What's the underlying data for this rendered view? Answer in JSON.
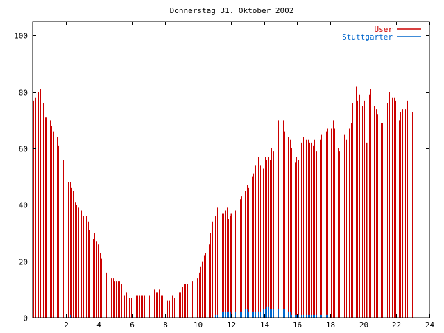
{
  "chart_data": {
    "type": "bar",
    "title": "Donnerstag 31. Oktober 2002",
    "xlim": [
      0,
      24
    ],
    "ylim": [
      0,
      105
    ],
    "xticks": [
      2,
      4,
      6,
      8,
      10,
      12,
      14,
      16,
      18,
      20,
      22,
      24
    ],
    "yticks": [
      0,
      20,
      40,
      60,
      80,
      100
    ],
    "legend_position": "top-right",
    "grid": false,
    "bin_minutes": 6,
    "series": [
      {
        "name": "User",
        "color": "#cc0000",
        "values": [
          77,
          78,
          76,
          80,
          81,
          81,
          76,
          71,
          71,
          72,
          70,
          68,
          66,
          64,
          64,
          61,
          59,
          62,
          56,
          54,
          51,
          48,
          48,
          46,
          45,
          41,
          40,
          39,
          38,
          38,
          36,
          37,
          36,
          34,
          31,
          28,
          28,
          30,
          27,
          26,
          23,
          21,
          20,
          19,
          16,
          15,
          15,
          14,
          14,
          13,
          13,
          13,
          13,
          12,
          8,
          8,
          9,
          7,
          7,
          7,
          7,
          7,
          8,
          8,
          8,
          8,
          8,
          8,
          8,
          8,
          8,
          8,
          8,
          10,
          9,
          9,
          10,
          8,
          8,
          8,
          6,
          6,
          6,
          7,
          8,
          7,
          8,
          8,
          9,
          9,
          11,
          12,
          12,
          12,
          12,
          11,
          13,
          13,
          13,
          14,
          16,
          18,
          20,
          22,
          23,
          24,
          26,
          30,
          34,
          35,
          36,
          39,
          38,
          36,
          37,
          37,
          38,
          39,
          35,
          36,
          37,
          35,
          38,
          39,
          40,
          42,
          43,
          40,
          45,
          47,
          46,
          49,
          50,
          51,
          54,
          54,
          57,
          54,
          54,
          53,
          57,
          56,
          57,
          56,
          60,
          59,
          62,
          63,
          70,
          72,
          73,
          70,
          66,
          63,
          64,
          63,
          60,
          55,
          55,
          57,
          56,
          57,
          62,
          64,
          65,
          63,
          63,
          62,
          62,
          61,
          63,
          59,
          62,
          63,
          65,
          65,
          67,
          66,
          67,
          67,
          67,
          70,
          67,
          65,
          60,
          59,
          59,
          63,
          65,
          63,
          65,
          67,
          69,
          76,
          79,
          82,
          77,
          79,
          78,
          75,
          77,
          80,
          78,
          79,
          81,
          79,
          75,
          74,
          72,
          73,
          69,
          69,
          70,
          73,
          76,
          80,
          81,
          78,
          78,
          77,
          71,
          70,
          73,
          74,
          75,
          74,
          77,
          76,
          72,
          73
        ],
        "spikes": [
          {
            "x": 12.0,
            "value": 37
          },
          {
            "x": 20.2,
            "value": 62
          }
        ]
      },
      {
        "name": "Stuttgarter",
        "color": "#0066cc",
        "values": [
          0,
          0,
          0,
          0,
          0,
          0,
          0,
          0,
          0,
          0,
          0,
          0,
          0,
          0,
          0,
          0,
          0,
          0,
          0,
          0,
          0,
          0,
          1,
          0,
          0,
          0,
          0,
          0,
          0,
          0,
          0,
          0,
          0,
          0,
          0,
          0,
          0,
          0,
          0,
          0,
          0,
          0,
          0,
          0,
          0,
          0,
          0,
          0,
          0,
          0,
          0,
          0,
          0,
          0,
          0,
          0,
          0,
          0,
          0,
          0,
          0,
          0,
          0,
          0,
          0,
          0,
          0,
          0,
          0,
          0,
          0,
          0,
          0,
          0,
          0,
          0,
          0,
          0,
          0,
          0,
          0,
          0,
          0,
          0,
          0,
          0,
          0,
          0,
          0,
          0,
          0,
          0,
          0,
          0,
          0,
          0,
          0,
          0,
          0,
          0,
          0,
          0,
          0,
          0,
          0,
          0,
          0,
          0,
          0,
          0,
          1,
          1,
          2,
          2,
          2,
          2,
          2,
          2,
          2,
          2,
          2,
          2,
          2,
          2,
          2,
          2,
          2,
          3,
          3,
          3,
          2,
          2,
          2,
          2,
          2,
          2,
          2,
          2,
          2,
          3,
          3,
          4,
          4,
          3,
          3,
          3,
          3,
          3,
          3,
          3,
          3,
          3,
          3,
          2,
          2,
          2,
          1,
          1,
          1,
          1,
          1,
          1,
          1,
          1,
          1,
          1,
          1,
          1,
          1,
          1,
          1,
          1,
          1,
          1,
          1,
          1,
          1,
          1,
          1,
          1,
          0,
          0,
          0,
          0,
          0,
          0,
          0,
          0,
          0,
          0,
          0,
          0,
          0,
          0,
          0,
          0,
          0,
          0,
          0,
          0,
          0,
          0,
          0,
          0,
          0,
          0,
          0,
          0,
          0,
          0,
          0,
          0,
          0,
          0,
          0,
          0,
          0,
          0,
          0,
          0,
          0,
          0,
          0,
          0,
          0,
          0,
          0,
          0,
          0,
          0,
          0,
          0,
          0,
          0,
          0,
          0
        ]
      }
    ]
  }
}
